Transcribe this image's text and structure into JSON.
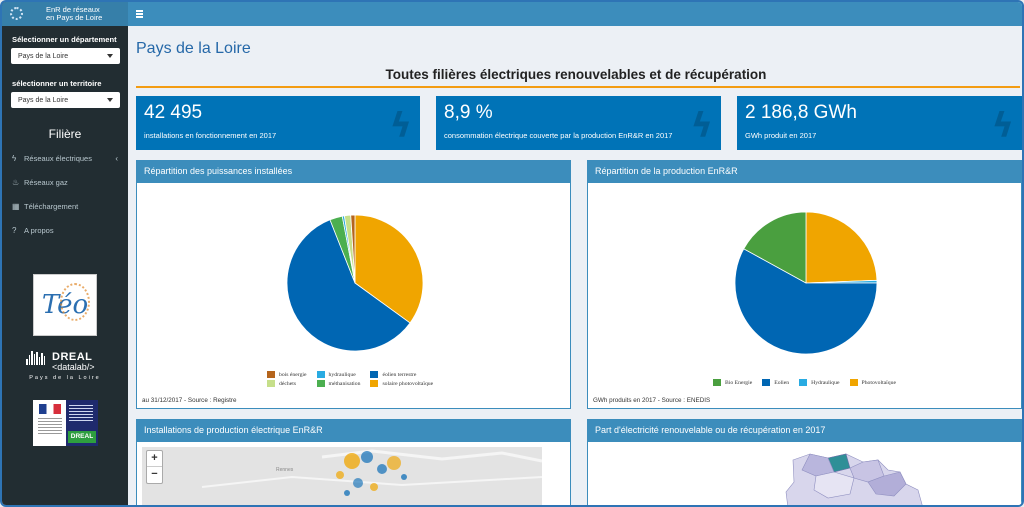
{
  "app": {
    "title_line1": "EnR de réseaux",
    "title_line2": "en Pays de Loire"
  },
  "sidebar": {
    "dept_label": "Sélectionner un département",
    "dept_value": "Pays de la Loire",
    "territory_label": "sélectionner un territoire",
    "territory_value": "Pays de la Loire",
    "section_title": "Filière",
    "items": [
      {
        "label": "Réseaux électriques",
        "icon": "bolt-icon"
      },
      {
        "label": "Réseaux gaz",
        "icon": "flame-icon"
      },
      {
        "label": "Téléchargement",
        "icon": "table-icon"
      },
      {
        "label": "A propos",
        "icon": "question-icon"
      }
    ],
    "partners": {
      "teo": "Téo",
      "dreal_title": "DREAL",
      "dreal_sub": "<datalab/>",
      "dreal_region": "Pays de la Loire",
      "dreal_badge": "DREAL"
    }
  },
  "main": {
    "page_title": "Pays de la Loire",
    "subtitle": "Toutes filières électriques renouvelables et de récupération",
    "stats": [
      {
        "value": "42 495",
        "desc": "installations en fonctionnement en 2017"
      },
      {
        "value": "8,9 %",
        "desc": "consommation électrique couverte par la production EnR&R en 2017"
      },
      {
        "value": "2 186,8 GWh",
        "desc": "GWh produit en 2017"
      }
    ],
    "boxes": {
      "puissances_title": "Répartition des puissances installées",
      "puissances_footer": "au 31/12/2017 - Source : Registre",
      "production_title": "Répartition de la production EnR&R",
      "production_footer": "GWh produits en 2017 - Source : ENEDIS",
      "installations_title": "Installations de production électrique EnR&R",
      "part_title": "Part d'électricité renouvelable ou de récupération en 2017",
      "map_city": "Rennes"
    }
  },
  "colors": {
    "header": "#3c8dbc",
    "stat_bg": "#0073b7",
    "accent_line": "#f39c12",
    "sidebar_bg": "#222d32"
  },
  "chart_data": [
    {
      "type": "pie",
      "title": "Répartition des puissances installées",
      "categories": [
        "bois énergie",
        "hydraulique",
        "éolien terrestre",
        "déchets",
        "méthanisation",
        "solaire photovoltaïque"
      ],
      "values": [
        1,
        0.5,
        59,
        1.5,
        3,
        35
      ],
      "colors": [
        "#b5651d",
        "#29abe2",
        "#0066b3",
        "#c6df8a",
        "#4caf50",
        "#f0a500"
      ],
      "draw_order": [
        5,
        2,
        4,
        1,
        3,
        0
      ]
    },
    {
      "type": "pie",
      "title": "Répartition de la production EnR&R",
      "categories": [
        "Bio Energie",
        "Eolien",
        "Hydraulique",
        "Photovoltaïque"
      ],
      "values": [
        17,
        58,
        0.6,
        24.4
      ],
      "colors": [
        "#4a9f3f",
        "#0066b3",
        "#29abe2",
        "#f0a500"
      ],
      "draw_order": [
        3,
        2,
        1,
        0
      ]
    }
  ]
}
